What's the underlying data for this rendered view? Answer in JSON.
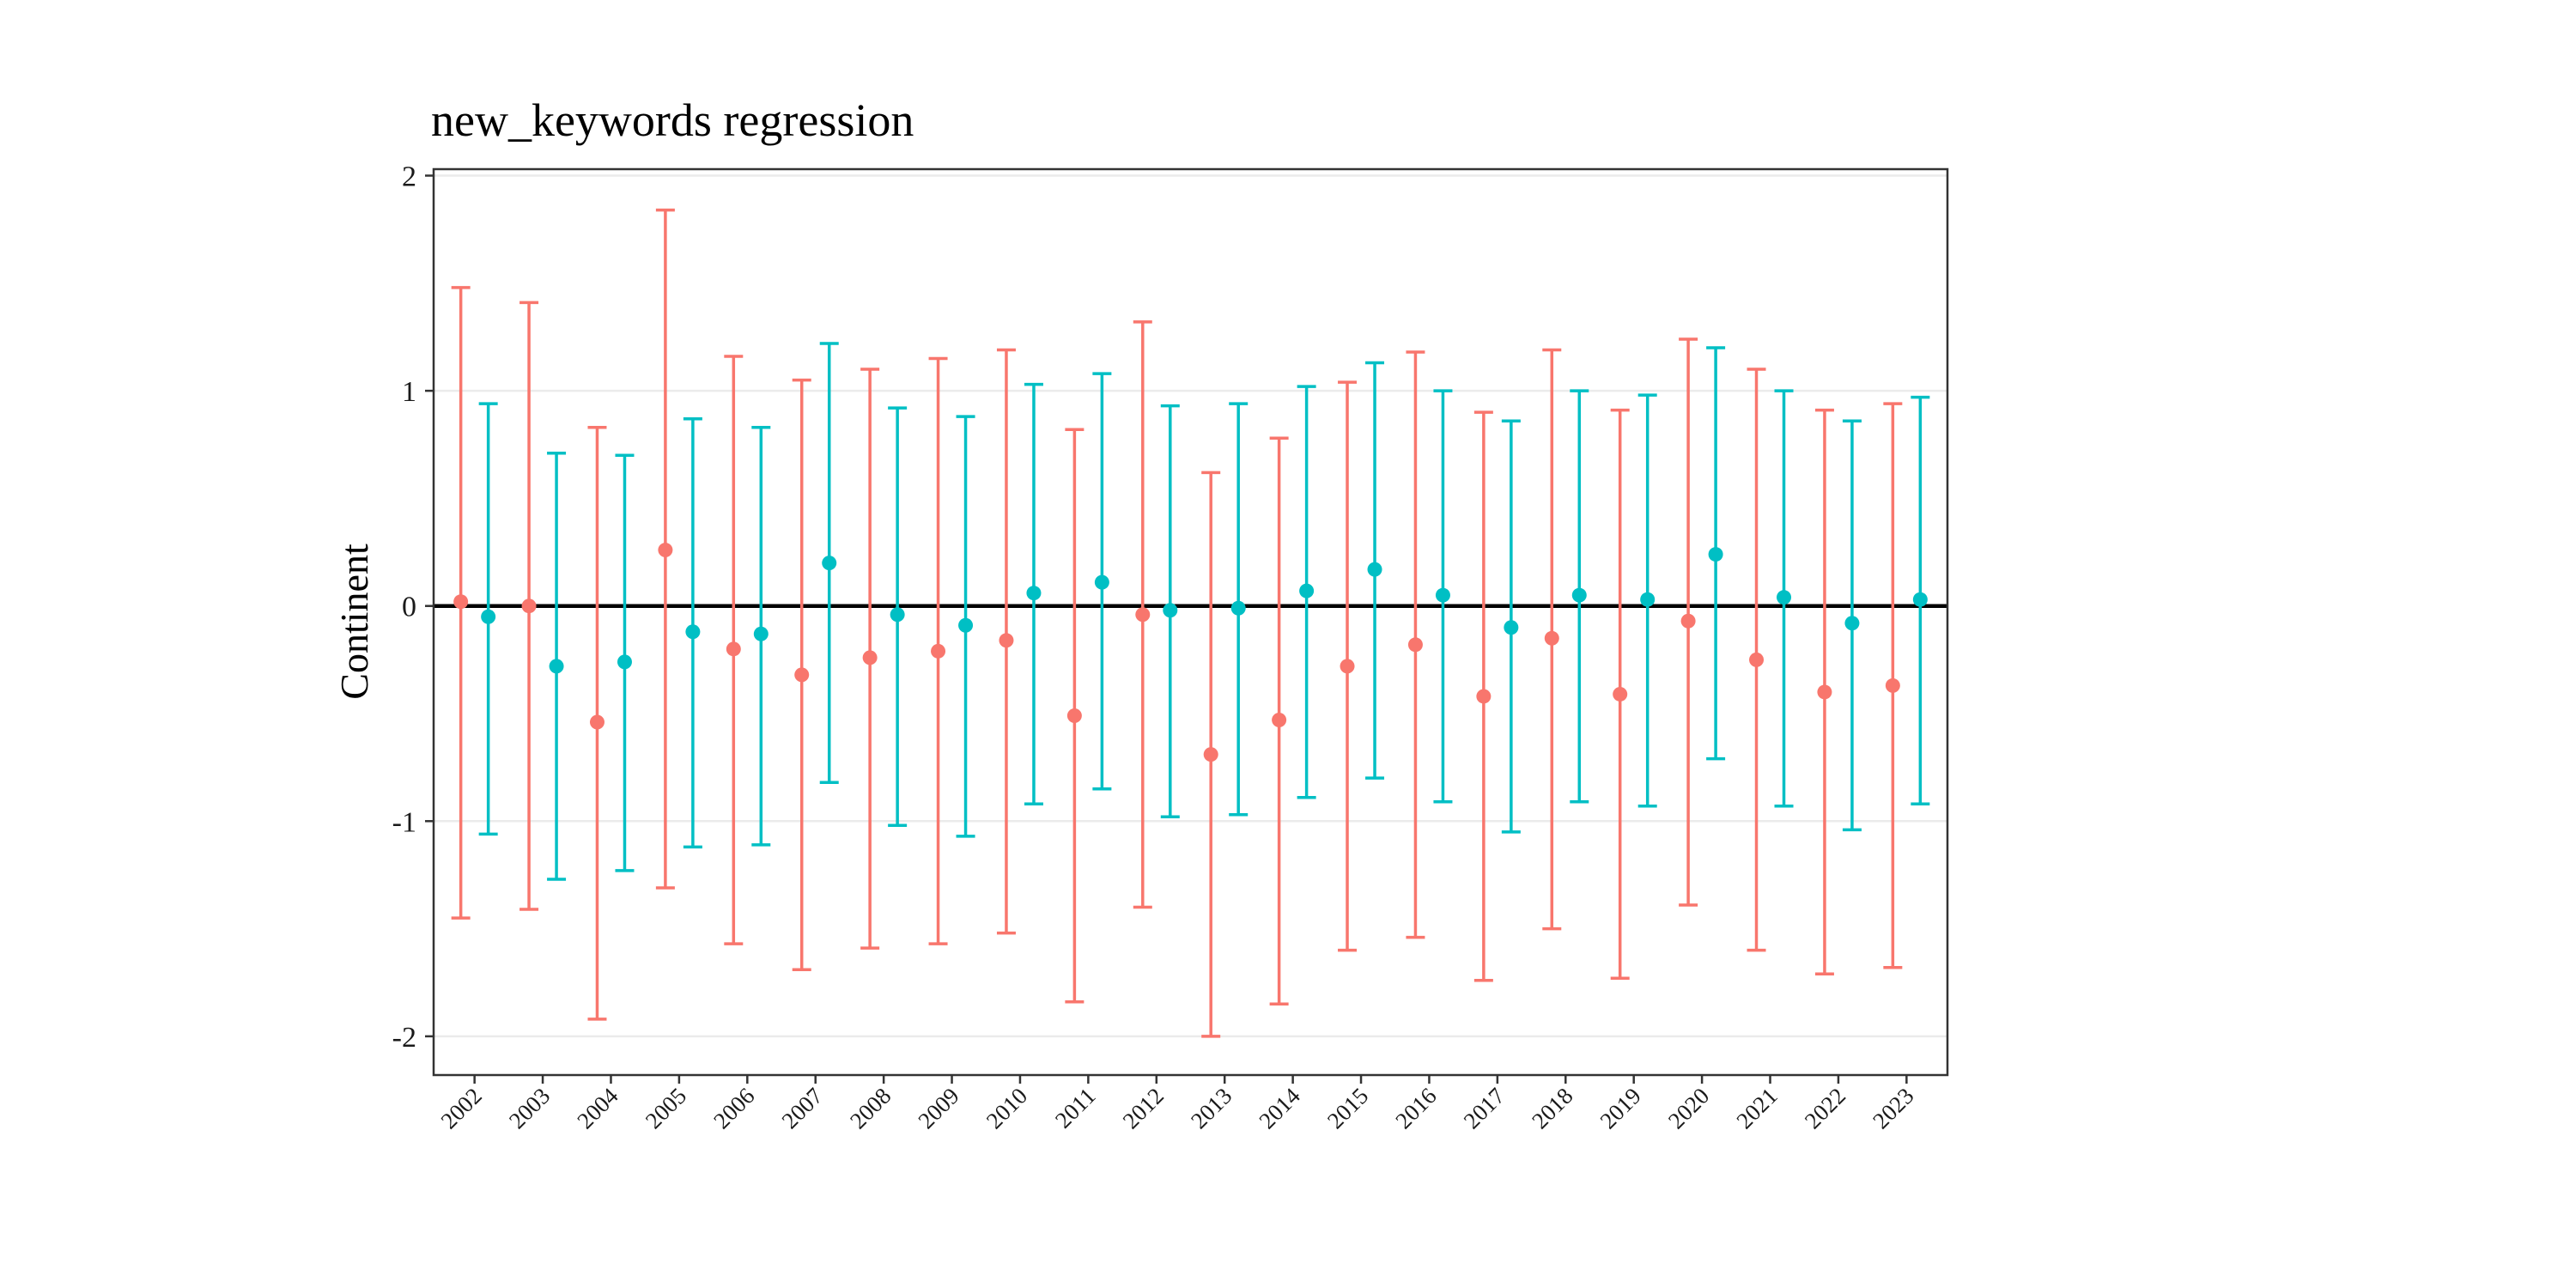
{
  "chart_data": {
    "type": "scatter",
    "subtype": "point-range with error bars",
    "title": "new_keywords regression",
    "xlabel": "",
    "ylabel": "Continent",
    "ylim": [
      -2.18,
      2.03
    ],
    "yticks": [
      -2,
      -1,
      0,
      1,
      2
    ],
    "ytick_labels": [
      "-2",
      "-1",
      "0",
      "1",
      "2"
    ],
    "reference_line_y": 0,
    "grid": "horizontal major gridlines",
    "legend": "none",
    "categories": [
      "2002",
      "2003",
      "2004",
      "2005",
      "2006",
      "2007",
      "2008",
      "2009",
      "2010",
      "2011",
      "2012",
      "2013",
      "2014",
      "2015",
      "2016",
      "2017",
      "2018",
      "2019",
      "2020",
      "2021",
      "2022",
      "2023"
    ],
    "series": [
      {
        "color": "#F8766D",
        "estimate": [
          0.02,
          0.0,
          -0.54,
          0.26,
          -0.2,
          -0.32,
          -0.24,
          -0.21,
          -0.16,
          -0.51,
          -0.04,
          -0.69,
          -0.53,
          -0.28,
          -0.18,
          -0.42,
          -0.15,
          -0.41,
          -0.07,
          -0.25,
          -0.4,
          -0.37
        ],
        "lower": [
          -1.45,
          -1.41,
          -1.92,
          -1.31,
          -1.57,
          -1.69,
          -1.59,
          -1.57,
          -1.52,
          -1.84,
          -1.4,
          -2.0,
          -1.85,
          -1.6,
          -1.54,
          -1.74,
          -1.5,
          -1.73,
          -1.39,
          -1.6,
          -1.71,
          -1.68
        ],
        "upper": [
          1.48,
          1.41,
          0.83,
          1.84,
          1.16,
          1.05,
          1.1,
          1.15,
          1.19,
          0.82,
          1.32,
          0.62,
          0.78,
          1.04,
          1.18,
          0.9,
          1.19,
          0.91,
          1.24,
          1.1,
          0.91,
          0.94
        ]
      },
      {
        "color": "#00BFC4",
        "estimate": [
          -0.05,
          -0.28,
          -0.26,
          -0.12,
          -0.13,
          0.2,
          -0.04,
          -0.09,
          0.06,
          0.11,
          -0.02,
          -0.01,
          0.07,
          0.17,
          0.05,
          -0.1,
          0.05,
          0.03,
          0.24,
          0.04,
          -0.08,
          0.03
        ],
        "lower": [
          -1.06,
          -1.27,
          -1.23,
          -1.12,
          -1.11,
          -0.82,
          -1.02,
          -1.07,
          -0.92,
          -0.85,
          -0.98,
          -0.97,
          -0.89,
          -0.8,
          -0.91,
          -1.05,
          -0.91,
          -0.93,
          -0.71,
          -0.93,
          -1.04,
          -0.92
        ],
        "upper": [
          0.94,
          0.71,
          0.7,
          0.87,
          0.83,
          1.22,
          0.92,
          0.88,
          1.03,
          1.08,
          0.93,
          0.94,
          1.02,
          1.13,
          1.0,
          0.86,
          1.0,
          0.98,
          1.2,
          1.0,
          0.86,
          0.97
        ]
      }
    ]
  }
}
